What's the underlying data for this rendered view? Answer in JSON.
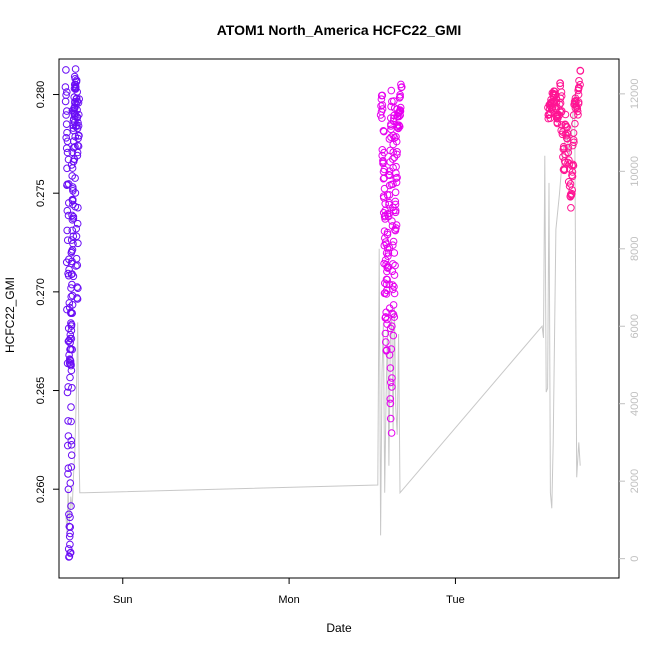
{
  "chart_data": {
    "type": "scatter",
    "title": "ATOM1 North_America HCFC22_GMI",
    "xlabel": "Date",
    "ylabel": "HCFC22_GMI",
    "x_ticks": [
      {
        "label": "Sun",
        "value": 0
      },
      {
        "label": "Mon",
        "value": 24
      },
      {
        "label": "Tue",
        "value": 48
      }
    ],
    "xlim": [
      -9.2,
      71.6
    ],
    "ylim": [
      0.2555,
      0.2818
    ],
    "y_ticks": [
      0.26,
      0.265,
      0.27,
      0.275,
      0.28
    ],
    "y_tick_labels": [
      "0.260",
      "0.265",
      "0.270",
      "0.275",
      "0.280"
    ],
    "y2_ticks": [
      0,
      2000,
      4000,
      6000,
      8000,
      10000,
      12000
    ],
    "y2_tick_labels": [
      "0",
      "2000",
      "4000",
      "6000",
      "8000",
      "10000",
      "12000"
    ],
    "y2lim": [
      -500,
      12900
    ],
    "y2_color": "#c0c0c0",
    "grid": false,
    "series": [
      {
        "role": "flight-1",
        "color": "#6a0df5",
        "marker": "open-circle",
        "segments": [
          {
            "x0": -8.2,
            "x1": -6.5,
            "points": 90,
            "shape": [
              [
                0,
                0.2812
              ],
              [
                0.04,
                0.279
              ],
              [
                0.08,
                0.2755
              ],
              [
                0.12,
                0.271
              ],
              [
                0.16,
                0.266
              ],
              [
                0.22,
                0.2615
              ],
              [
                0.28,
                0.2575
              ],
              [
                0.32,
                0.2565
              ],
              [
                0.36,
                0.2575
              ],
              [
                0.42,
                0.261
              ],
              [
                0.5,
                0.266
              ],
              [
                0.56,
                0.27
              ],
              [
                0.62,
                0.2745
              ],
              [
                0.68,
                0.278
              ],
              [
                0.74,
                0.28
              ],
              [
                0.82,
                0.278
              ],
              [
                0.88,
                0.273
              ],
              [
                0.94,
                0.269
              ],
              [
                1.0,
                0.274
              ]
            ]
          },
          {
            "x0": -7.6,
            "x1": -6.3,
            "points": 70,
            "shape": [
              [
                0,
                0.266
              ],
              [
                0.15,
                0.269
              ],
              [
                0.3,
                0.274
              ],
              [
                0.45,
                0.279
              ],
              [
                0.6,
                0.281
              ],
              [
                0.75,
                0.2795
              ],
              [
                0.9,
                0.277
              ],
              [
                1.0,
                0.28
              ]
            ]
          },
          {
            "x0": -8.1,
            "x1": -7.2,
            "points": 40,
            "shape": [
              [
                0,
                0.28
              ],
              [
                0.2,
                0.276
              ],
              [
                0.4,
                0.27
              ],
              [
                0.55,
                0.266
              ],
              [
                0.7,
                0.268
              ],
              [
                0.85,
                0.274
              ],
              [
                1.0,
                0.279
              ]
            ]
          }
        ]
      },
      {
        "role": "flight-2",
        "color": "#e600f0",
        "marker": "open-circle",
        "segments": [
          {
            "x0": 37.3,
            "x1": 40.2,
            "points": 110,
            "shape": [
              [
                0,
                0.279
              ],
              [
                0.06,
                0.28
              ],
              [
                0.12,
                0.276
              ],
              [
                0.18,
                0.271
              ],
              [
                0.24,
                0.267
              ],
              [
                0.3,
                0.27
              ],
              [
                0.36,
                0.276
              ],
              [
                0.42,
                0.268
              ],
              [
                0.48,
                0.263
              ],
              [
                0.54,
                0.27
              ],
              [
                0.6,
                0.277
              ],
              [
                0.66,
                0.28
              ],
              [
                0.72,
                0.273
              ],
              [
                0.8,
                0.279
              ],
              [
                0.88,
                0.2785
              ],
              [
                1.0,
                0.2805
              ]
            ]
          },
          {
            "x0": 37.5,
            "x1": 39.6,
            "points": 70,
            "shape": [
              [
                0,
                0.2775
              ],
              [
                0.15,
                0.274
              ],
              [
                0.3,
                0.27
              ],
              [
                0.45,
                0.276
              ],
              [
                0.6,
                0.28
              ],
              [
                0.75,
                0.268
              ],
              [
                0.9,
                0.274
              ],
              [
                1.0,
                0.279
              ]
            ]
          }
        ]
      },
      {
        "role": "flight-3",
        "color": "#ff1493",
        "marker": "open-circle",
        "segments": [
          {
            "x0": 61.4,
            "x1": 66.0,
            "points": 130,
            "shape": [
              [
                0,
                0.279
              ],
              [
                0.1,
                0.2795
              ],
              [
                0.2,
                0.28
              ],
              [
                0.3,
                0.2785
              ],
              [
                0.38,
                0.2805
              ],
              [
                0.44,
                0.278
              ],
              [
                0.5,
                0.276
              ],
              [
                0.56,
                0.279
              ],
              [
                0.62,
                0.277
              ],
              [
                0.7,
                0.2745
              ],
              [
                0.78,
                0.277
              ],
              [
                0.84,
                0.28
              ],
              [
                0.9,
                0.279
              ],
              [
                0.96,
                0.2805
              ],
              [
                1.0,
                0.2812
              ]
            ]
          }
        ]
      }
    ],
    "secondary_line": {
      "color": "#c8c8c8",
      "axis": "right",
      "points": [
        [
          -8.2,
          1100
        ],
        [
          -8.0,
          600
        ],
        [
          -7.9,
          1800
        ],
        [
          -7.7,
          900
        ],
        [
          -7.5,
          1600
        ],
        [
          -7.3,
          1300
        ],
        [
          -7.1,
          2200
        ],
        [
          -6.9,
          2800
        ],
        [
          -6.7,
          4200
        ],
        [
          -6.5,
          6100
        ],
        [
          -6.3,
          2600
        ],
        [
          -6.2,
          1700
        ],
        [
          -5.5,
          1700
        ],
        [
          36.8,
          1900
        ],
        [
          37.0,
          8000
        ],
        [
          37.2,
          600
        ],
        [
          37.4,
          4800
        ],
        [
          37.6,
          6100
        ],
        [
          37.8,
          1700
        ],
        [
          38.0,
          4200
        ],
        [
          38.2,
          6000
        ],
        [
          38.4,
          2400
        ],
        [
          38.6,
          5600
        ],
        [
          38.8,
          6300
        ],
        [
          39.0,
          3300
        ],
        [
          39.2,
          6500
        ],
        [
          39.4,
          3900
        ],
        [
          39.6,
          3200
        ],
        [
          39.8,
          5800
        ],
        [
          40.0,
          1700
        ],
        [
          60.5,
          6000
        ],
        [
          60.7,
          5700
        ],
        [
          60.9,
          10400
        ],
        [
          61.1,
          4300
        ],
        [
          61.3,
          4400
        ],
        [
          61.5,
          9700
        ],
        [
          61.7,
          1700
        ],
        [
          61.9,
          1300
        ],
        [
          62.1,
          3000
        ],
        [
          62.5,
          8500
        ],
        [
          63.0,
          9400
        ],
        [
          63.5,
          10500
        ],
        [
          64.0,
          11000
        ],
        [
          64.5,
          10400
        ],
        [
          65.0,
          11600
        ],
        [
          65.2,
          12000
        ],
        [
          65.5,
          2100
        ],
        [
          65.8,
          3000
        ],
        [
          66.0,
          2400
        ]
      ]
    }
  }
}
